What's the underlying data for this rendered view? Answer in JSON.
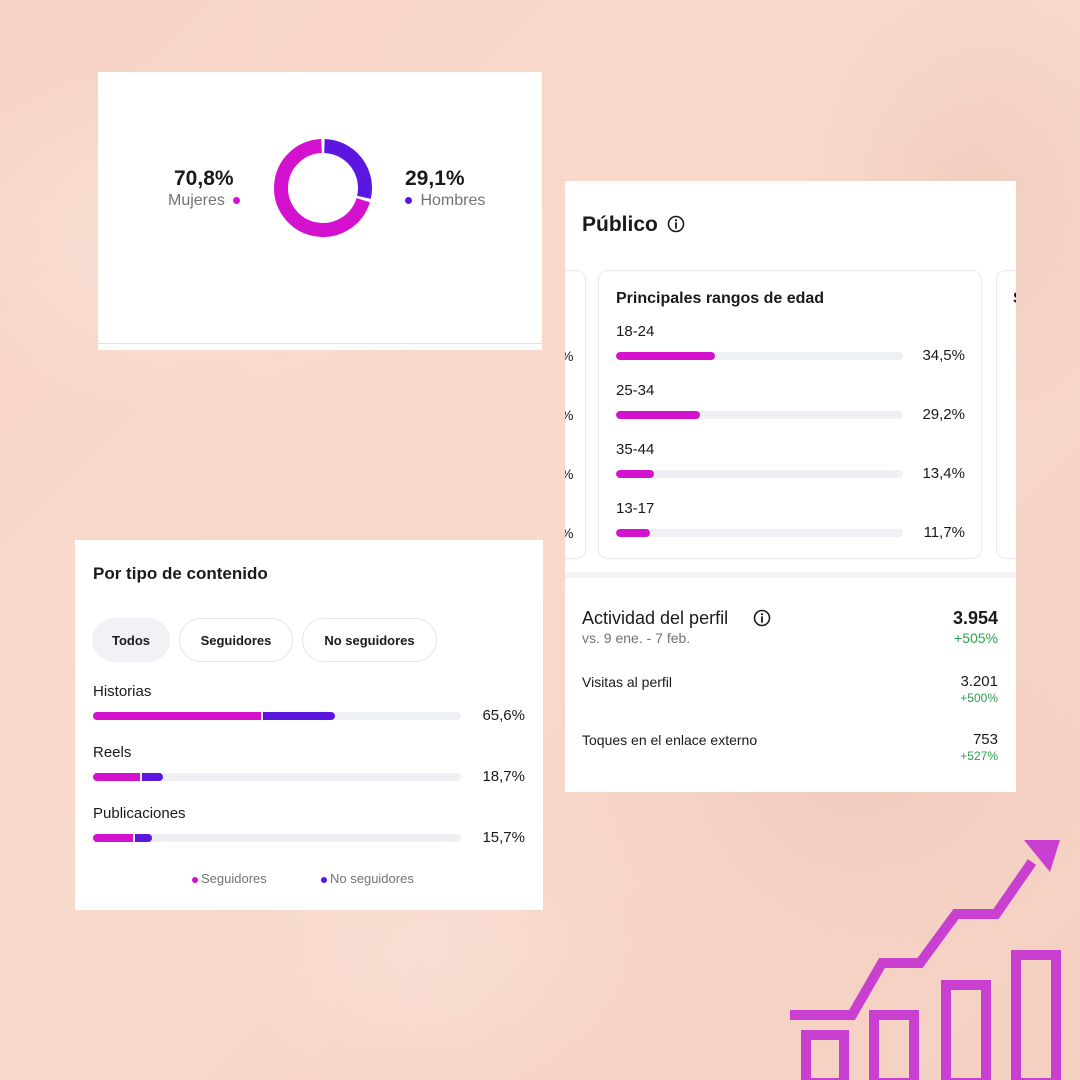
{
  "colors": {
    "seguidores": "#d311cf",
    "no_seguidores": "#5b16e0",
    "positive": "#2e9e4f",
    "accent_graphic": "#c93fd0"
  },
  "gender": {
    "women": {
      "percent": "70,8%",
      "label": "Mujeres",
      "value": 70.8
    },
    "men": {
      "percent": "29,1%",
      "label": "Hombres",
      "value": 29.1
    }
  },
  "publico": {
    "title": "Público",
    "age_ranges": {
      "title": "Principales rangos de edad",
      "items": [
        {
          "label": "18-24",
          "percent": "34,5%",
          "value": 34.5
        },
        {
          "label": "25-34",
          "percent": "29,2%",
          "value": 29.2
        },
        {
          "label": "35-44",
          "percent": "13,4%",
          "value": 13.4
        },
        {
          "label": "13-17",
          "percent": "11,7%",
          "value": 11.7
        }
      ]
    },
    "left_clipped": [
      "%",
      "%",
      "%",
      "%"
    ],
    "right_clipped_letter": "S"
  },
  "activity": {
    "title": "Actividad del perfil",
    "total": "3.954",
    "total_change": "+505%",
    "period": "vs. 9 ene. - 7 feb.",
    "rows": [
      {
        "label": "Visitas al perfil",
        "value": "3.201",
        "change": "+500%"
      },
      {
        "label": "Toques en el enlace externo",
        "value": "753",
        "change": "+527%"
      }
    ]
  },
  "content_type": {
    "title": "Por tipo de contenido",
    "tabs": [
      "Todos",
      "Seguidores",
      "No seguidores"
    ],
    "active_tab": "Todos",
    "items": [
      {
        "label": "Historias",
        "percent": "65,6%",
        "seguidores": 46.0,
        "no_seguidores": 19.6
      },
      {
        "label": "Reels",
        "percent": "18,7%",
        "seguidores": 13.0,
        "no_seguidores": 5.7
      },
      {
        "label": "Publicaciones",
        "percent": "15,7%",
        "seguidores": 11.2,
        "no_seguidores": 4.5
      }
    ],
    "legend": [
      "Seguidores",
      "No seguidores"
    ]
  }
}
